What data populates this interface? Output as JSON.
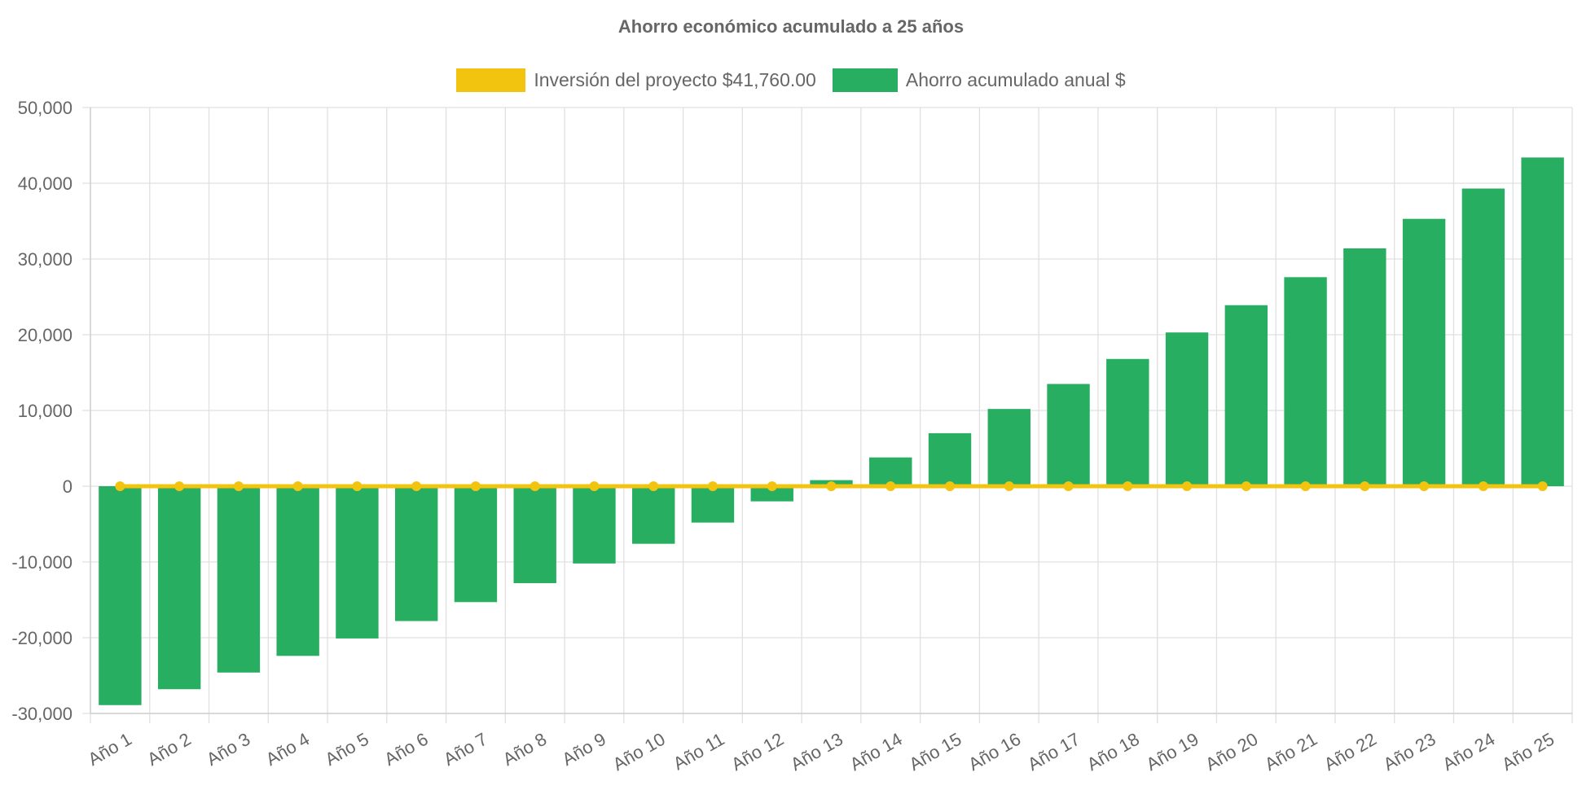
{
  "chart_data": {
    "type": "bar",
    "title": "Ahorro económico acumulado a 25 años",
    "categories": [
      "Año 1",
      "Año 2",
      "Año 3",
      "Año 4",
      "Año 5",
      "Año 6",
      "Año 7",
      "Año 8",
      "Año 9",
      "Año 10",
      "Año 11",
      "Año 12",
      "Año 13",
      "Año 14",
      "Año 15",
      "Año 16",
      "Año 17",
      "Año 18",
      "Año 19",
      "Año 20",
      "Año 21",
      "Año 22",
      "Año 23",
      "Año 24",
      "Año 25"
    ],
    "series": [
      {
        "name": "Inversión del proyecto $41,760.00",
        "kind": "line",
        "color": "#f2c40f",
        "values": [
          0,
          0,
          0,
          0,
          0,
          0,
          0,
          0,
          0,
          0,
          0,
          0,
          0,
          0,
          0,
          0,
          0,
          0,
          0,
          0,
          0,
          0,
          0,
          0,
          0
        ]
      },
      {
        "name": "Ahorro acumulado anual $",
        "kind": "bar",
        "color": "#27ae60",
        "values": [
          -28900,
          -26800,
          -24600,
          -22400,
          -20100,
          -17800,
          -15300,
          -12800,
          -10200,
          -7600,
          -4800,
          -2000,
          800,
          3800,
          7000,
          10200,
          13500,
          16800,
          20300,
          23900,
          27600,
          31400,
          35300,
          39300,
          43400
        ]
      }
    ],
    "ylim": [
      -30000,
      50000
    ],
    "yticks": [
      -30000,
      -20000,
      -10000,
      0,
      10000,
      20000,
      30000,
      40000,
      50000
    ],
    "ytick_labels": [
      "-30,000",
      "-20,000",
      "-10,000",
      "0",
      "10,000",
      "20,000",
      "30,000",
      "40,000",
      "50,000"
    ],
    "grid": true,
    "legend_position": "top-center"
  }
}
